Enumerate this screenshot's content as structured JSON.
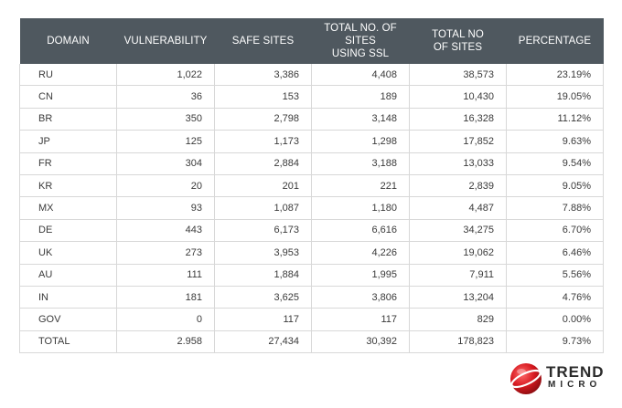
{
  "table": {
    "headers": [
      [
        "DOMAIN"
      ],
      [
        "VULNERABILITY"
      ],
      [
        "SAFE SITES"
      ],
      [
        "TOTAL NO. OF SITES",
        "USING  SSL"
      ],
      [
        "TOTAL NO",
        "OF SITES"
      ],
      [
        "PERCENTAGE"
      ]
    ],
    "rows": [
      [
        "RU",
        "1,022",
        "3,386",
        "4,408",
        "38,573",
        "23.19%"
      ],
      [
        "CN",
        "36",
        "153",
        "189",
        "10,430",
        "19.05%"
      ],
      [
        "BR",
        "350",
        "2,798",
        "3,148",
        "16,328",
        "11.12%"
      ],
      [
        "JP",
        "125",
        "1,173",
        "1,298",
        "17,852",
        "9.63%"
      ],
      [
        "FR",
        "304",
        "2,884",
        "3,188",
        "13,033",
        "9.54%"
      ],
      [
        "KR",
        "20",
        "201",
        "221",
        "2,839",
        "9.05%"
      ],
      [
        "MX",
        "93",
        "1,087",
        "1,180",
        "4,487",
        "7.88%"
      ],
      [
        "DE",
        "443",
        "6,173",
        "6,616",
        "34,275",
        "6.70%"
      ],
      [
        "UK",
        "273",
        "3,953",
        "4,226",
        "19,062",
        "6.46%"
      ],
      [
        "AU",
        "111",
        "1,884",
        "1,995",
        "7,911",
        "5.56%"
      ],
      [
        "IN",
        "181",
        "3,625",
        "3,806",
        "13,204",
        "4.76%"
      ],
      [
        "GOV",
        "0",
        "117",
        "117",
        "829",
        "0.00%"
      ],
      [
        "TOTAL",
        "2.958",
        "27,434",
        "30,392",
        "178,823",
        "9.73%"
      ]
    ]
  },
  "logo": {
    "line1": "TREND",
    "line2": "MICRO",
    "icon": "trend-micro-ball-icon",
    "color": "#d71920"
  }
}
